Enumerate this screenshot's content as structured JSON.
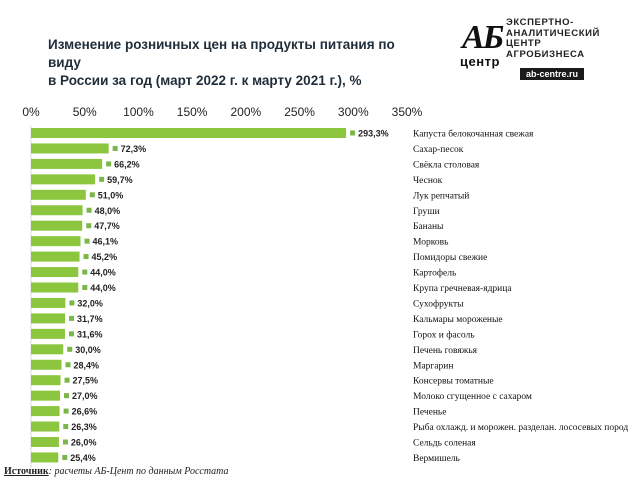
{
  "header": {
    "title_line1": "Изменение розничных цен на продукты питания по виду",
    "title_line2": "в России за год (март 2022 г. к марту 2021 г.), %"
  },
  "logo": {
    "mark": "АБ",
    "word": "центр",
    "line1": "ЭКСПЕРТНО-",
    "line2": "АНАЛИТИЧЕСКИЙ",
    "line3": "ЦЕНТР",
    "line4": "АГРОБИЗНЕСА",
    "site": "ab-centre.ru"
  },
  "source": {
    "label": "Источник",
    "text": ": расчеты АБ-Цент по данным Росстата"
  },
  "colors": {
    "bar": "#8cc63f",
    "marker": "#7ab648"
  },
  "chart_data": {
    "type": "bar",
    "orientation": "horizontal",
    "title": "Изменение розничных цен на продукты питания по виду в России за год (март 2022 г. к марту 2021 г.), %",
    "xlim": [
      0,
      350
    ],
    "xticks": [
      "0%",
      "50%",
      "100%",
      "150%",
      "200%",
      "250%",
      "300%",
      "350%"
    ],
    "grid": false,
    "categories": [
      "Капуста белокочанная свежая",
      "Сахар-песок",
      "Свёкла столовая",
      "Чеснок",
      "Лук репчатый",
      "Груши",
      "Бананы",
      "Морковь",
      "Помидоры свежие",
      "Картофель",
      "Крупа гречневая-ядрица",
      "Сухофрукты",
      "Кальмары мороженые",
      "Горох и фасоль",
      "Печень говяжья",
      "Маргарин",
      "Консервы томатные",
      "Молоко сгущенное с сахаром",
      "Печенье",
      "Рыба охлажд. и морожен. разделан. лососевых пород",
      "Сельдь соленая",
      "Вермишель"
    ],
    "values": [
      293.3,
      72.3,
      66.2,
      59.7,
      51.0,
      48.0,
      47.7,
      46.1,
      45.2,
      44.0,
      44.0,
      32.0,
      31.7,
      31.6,
      30.0,
      28.4,
      27.5,
      27.0,
      26.6,
      26.3,
      26.0,
      25.4
    ],
    "value_labels": [
      "293,3%",
      "72,3%",
      "66,2%",
      "59,7%",
      "51,0%",
      "48,0%",
      "47,7%",
      "46,1%",
      "45,2%",
      "44,0%",
      "44,0%",
      "32,0%",
      "31,7%",
      "31,6%",
      "30,0%",
      "28,4%",
      "27,5%",
      "27,0%",
      "26,6%",
      "26,3%",
      "26,0%",
      "25,4%"
    ]
  }
}
